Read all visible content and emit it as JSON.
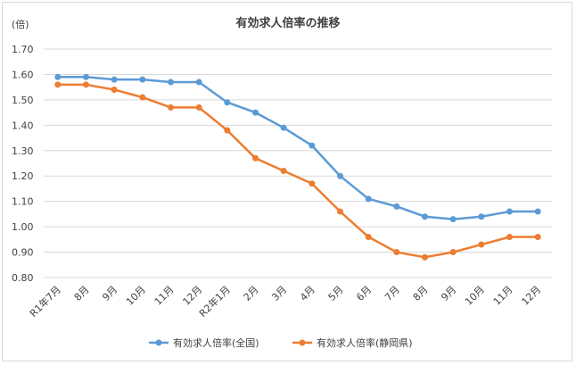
{
  "chart_data": {
    "type": "line",
    "title": "有効求人倍率の推移",
    "ylabel": "(倍)",
    "xlabel": "",
    "ylim": [
      0.8,
      1.7
    ],
    "yticks": [
      "1.70",
      "1.60",
      "1.50",
      "1.40",
      "1.30",
      "1.20",
      "1.10",
      "1.00",
      "0.90",
      "0.80"
    ],
    "categories": [
      "R1年7月",
      "8月",
      "9月",
      "10月",
      "11月",
      "12月",
      "R2年1月",
      "2月",
      "3月",
      "4月",
      "5月",
      "6月",
      "7月",
      "8月",
      "9月",
      "10月",
      "11月",
      "12月"
    ],
    "grid": true,
    "legend_position": "bottom",
    "series": [
      {
        "name": "有効求人倍率(全国)",
        "color": "#5b9bd5",
        "values": [
          1.59,
          1.59,
          1.58,
          1.58,
          1.57,
          1.57,
          1.49,
          1.45,
          1.39,
          1.32,
          1.2,
          1.11,
          1.08,
          1.04,
          1.03,
          1.04,
          1.06,
          1.06
        ]
      },
      {
        "name": "有効求人倍率(静岡県)",
        "color": "#ed7d31",
        "values": [
          1.56,
          1.56,
          1.54,
          1.51,
          1.47,
          1.47,
          1.38,
          1.27,
          1.22,
          1.17,
          1.06,
          0.96,
          0.9,
          0.88,
          0.9,
          0.93,
          0.96,
          0.96
        ]
      }
    ]
  }
}
